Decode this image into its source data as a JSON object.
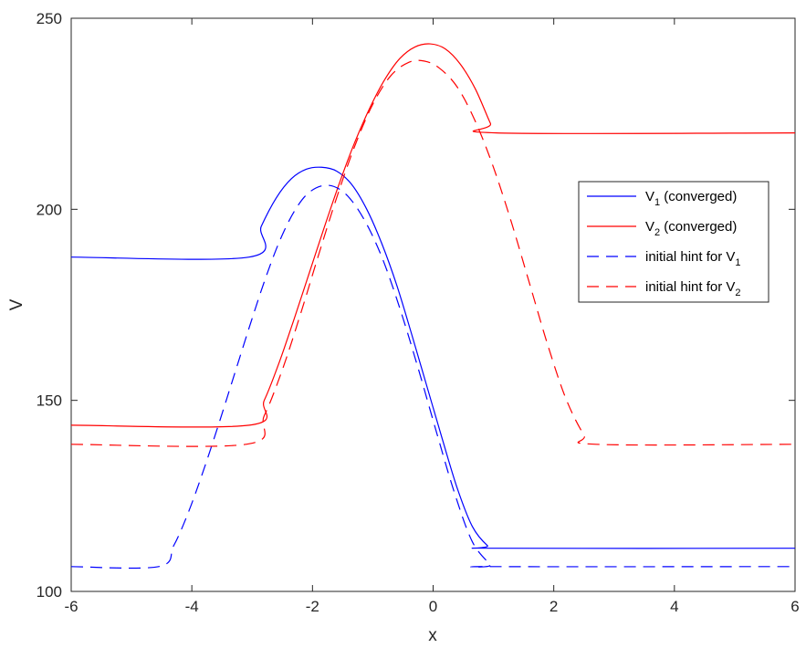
{
  "chart_data": {
    "type": "line",
    "title": "",
    "xlabel": "x",
    "ylabel": "V",
    "xlim": [
      -6,
      6
    ],
    "ylim": [
      100,
      250
    ],
    "xticks": [
      -6,
      -4,
      -2,
      0,
      2,
      4,
      6
    ],
    "yticks": [
      100,
      150,
      200,
      250
    ],
    "grid": false,
    "legend_position": "right",
    "series": [
      {
        "name": "V_1 (converged)",
        "legend_label": "V",
        "legend_sub": "1",
        "legend_suffix": " (converged)",
        "color": "#0000ff",
        "style": "solid",
        "x": [
          -6,
          -3.05,
          -2.85,
          -2.6,
          -2.35,
          -2.1,
          -1.85,
          -1.6,
          -1.35,
          -1.1,
          -0.85,
          -0.6,
          -0.35,
          -0.1,
          0.15,
          0.4,
          0.65,
          0.9,
          1.05,
          6
        ],
        "y": [
          187.5,
          187.5,
          195.5,
          203,
          208,
          210.5,
          211,
          210,
          206.5,
          200,
          191,
          180,
          167,
          153.5,
          140,
          127,
          117,
          112,
          111.3,
          111.3
        ]
      },
      {
        "name": "V_2 (converged)",
        "legend_label": "V",
        "legend_sub": "2",
        "legend_suffix": " (converged)",
        "color": "#ff0000",
        "style": "solid",
        "x": [
          -6,
          -3.05,
          -2.8,
          -2.55,
          -2.3,
          -2.05,
          -1.8,
          -1.55,
          -1.3,
          -1.05,
          -0.8,
          -0.55,
          -0.3,
          -0.05,
          0.2,
          0.45,
          0.7,
          0.95,
          1.05,
          6
        ],
        "y": [
          143.5,
          143.5,
          150,
          160,
          171.5,
          183.5,
          195.5,
          207,
          217.5,
          226.5,
          234,
          239.5,
          242.5,
          243.3,
          242,
          238,
          231.5,
          222.5,
          220,
          220
        ]
      },
      {
        "name": "initial hint for V_1",
        "legend_label": "initial hint for V",
        "legend_sub": "1",
        "legend_suffix": "",
        "color": "#0000ff",
        "style": "dashed",
        "x": [
          -6,
          -4.55,
          -4.3,
          -4.05,
          -3.8,
          -3.55,
          -3.3,
          -3.05,
          -2.8,
          -2.55,
          -2.3,
          -2.05,
          -1.75,
          -1.45,
          -1.15,
          -0.85,
          -0.55,
          -0.25,
          0.05,
          0.35,
          0.65,
          0.95,
          1.0,
          6
        ],
        "y": [
          106.5,
          106.5,
          112,
          121,
          132,
          144,
          156.5,
          169,
          181,
          191.5,
          199.5,
          204.5,
          206.3,
          204,
          197.5,
          187.5,
          174,
          158.5,
          142,
          126,
          113,
          107,
          106.5,
          106.5
        ]
      },
      {
        "name": "initial hint for V_2",
        "legend_label": "initial hint for V",
        "legend_sub": "2",
        "legend_suffix": "",
        "color": "#ff0000",
        "style": "dashed",
        "x": [
          -6,
          -3.1,
          -2.8,
          -2.5,
          -2.2,
          -1.9,
          -1.6,
          -1.3,
          -1.0,
          -0.7,
          -0.4,
          -0.15,
          0.1,
          0.4,
          0.7,
          1.0,
          1.3,
          1.6,
          1.9,
          2.2,
          2.5,
          2.7,
          6
        ],
        "y": [
          138.5,
          138.5,
          146,
          158,
          172.5,
          188,
          203,
          216.5,
          227.5,
          235,
          238.5,
          238.8,
          237,
          232,
          223,
          211,
          196.5,
          180.5,
          164.5,
          150.5,
          141,
          138.5,
          138.5
        ]
      }
    ]
  }
}
